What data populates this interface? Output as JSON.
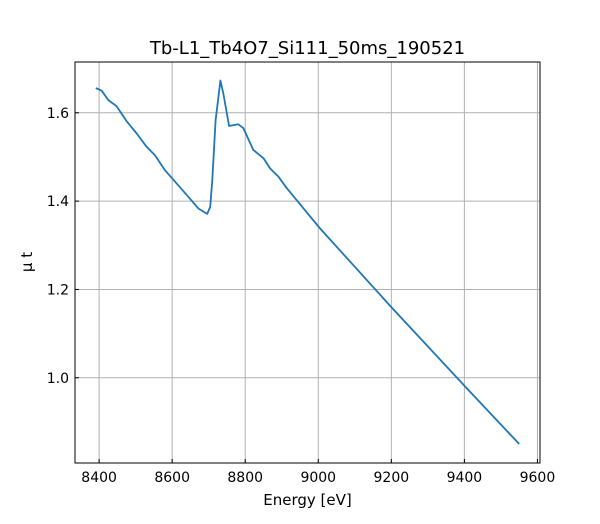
{
  "chart_data": {
    "type": "line",
    "title": "Tb-L1_Tb4O7_Si111_50ms_190521",
    "xlabel": "Energy [eV]",
    "ylabel": "μ t",
    "xlim": [
      8334,
      9607
    ],
    "ylim": [
      0.807,
      1.715
    ],
    "xticks": [
      8400,
      8600,
      8800,
      9000,
      9200,
      9400,
      9600
    ],
    "yticks": [
      1.0,
      1.2,
      1.4,
      1.6
    ],
    "xtick_labels": [
      "8400",
      "8600",
      "8800",
      "9000",
      "9200",
      "9400",
      "9600"
    ],
    "ytick_labels": [
      "1.0",
      "1.2",
      "1.4",
      "1.6"
    ],
    "grid": true,
    "line_color": "#1f77b4",
    "series": [
      {
        "name": "mu_t",
        "x": [
          8391,
          8407,
          8425,
          8448,
          8476,
          8503,
          8530,
          8553,
          8580,
          8608,
          8644,
          8672,
          8696,
          8704,
          8710,
          8719,
          8732,
          8740,
          8756,
          8781,
          8795,
          8822,
          8850,
          8868,
          8891,
          8914,
          8941,
          9005,
          9200,
          9400,
          9550
        ],
        "y": [
          1.656,
          1.65,
          1.629,
          1.615,
          1.58,
          1.553,
          1.523,
          1.504,
          1.47,
          1.444,
          1.41,
          1.383,
          1.371,
          1.387,
          1.448,
          1.583,
          1.673,
          1.644,
          1.57,
          1.574,
          1.565,
          1.516,
          1.497,
          1.474,
          1.455,
          1.429,
          1.402,
          1.338,
          1.16,
          0.982,
          0.85
        ]
      }
    ]
  }
}
